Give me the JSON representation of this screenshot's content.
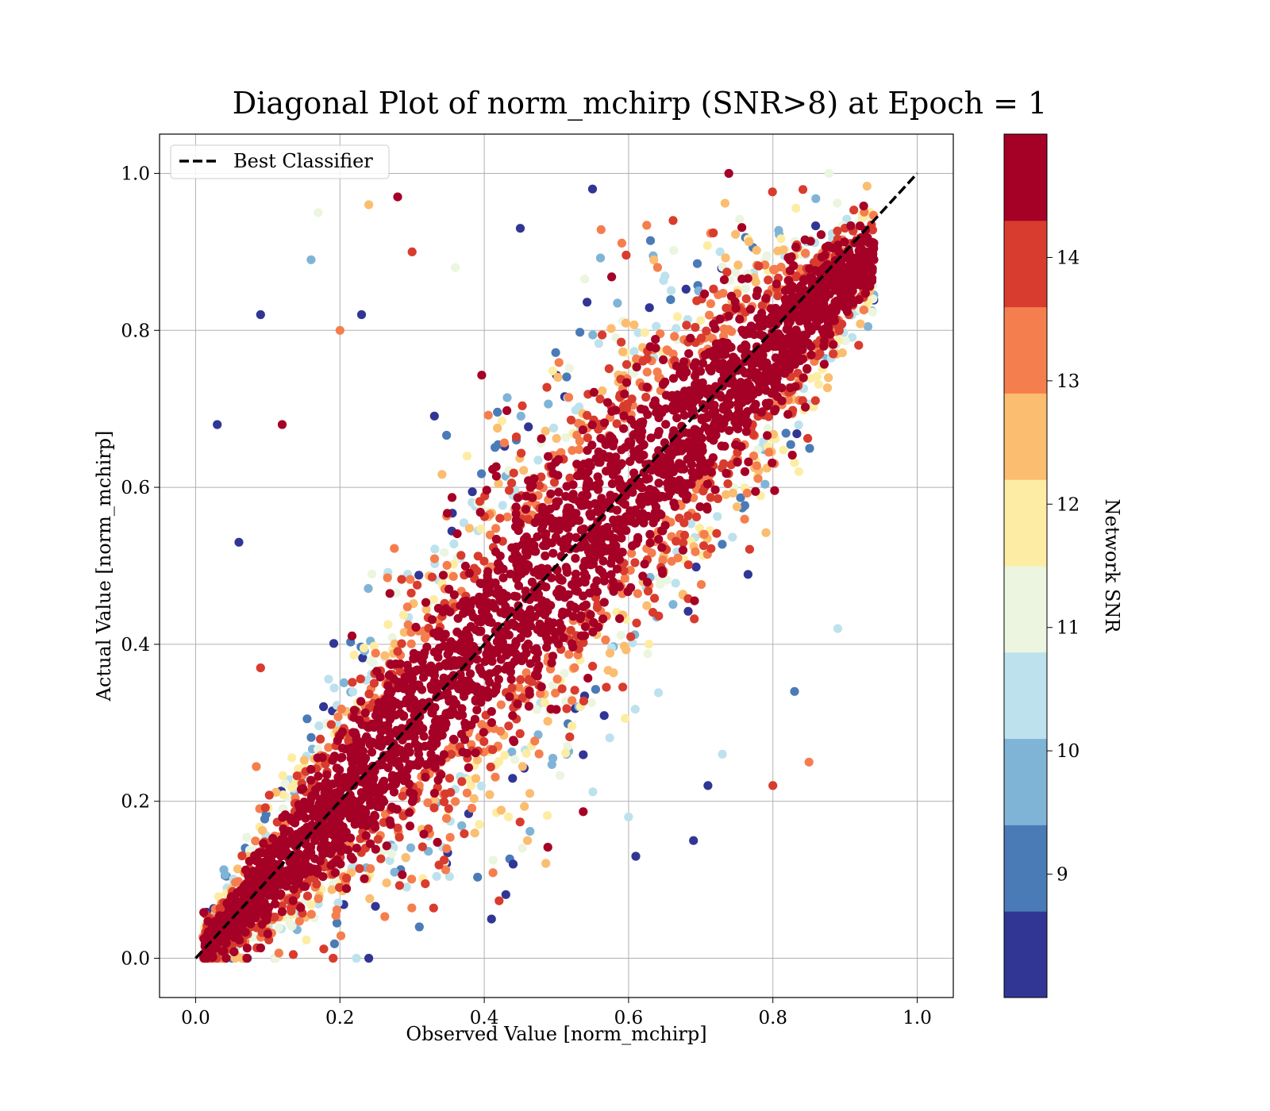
{
  "chart_data": {
    "type": "scatter",
    "title": "Diagonal Plot of norm_mchirp (SNR>8) at Epoch = 1",
    "xlabel": "Observed Value [norm_mchirp]",
    "ylabel": "Actual Value [norm_mchirp]",
    "xlim": [
      -0.05,
      1.05
    ],
    "ylim": [
      -0.05,
      1.05
    ],
    "xticks": [
      "0.0",
      "0.2",
      "0.4",
      "0.6",
      "0.8",
      "1.0"
    ],
    "yticks": [
      "0.0",
      "0.2",
      "0.4",
      "0.6",
      "0.8",
      "1.0"
    ],
    "grid": true,
    "legend": {
      "location": "upper left",
      "entries": [
        {
          "label": "Best Classifier",
          "style": "dashed",
          "color": "#000000"
        }
      ]
    },
    "reference_line": {
      "name": "Best Classifier",
      "x": [
        0.0,
        1.0
      ],
      "y": [
        0.0,
        1.0
      ]
    },
    "colorbar": {
      "label": "Network SNR",
      "range": [
        8.0,
        15.0
      ],
      "ticks": [
        "9",
        "10",
        "11",
        "12",
        "13",
        "14"
      ],
      "bins": [
        {
          "from": 8.0,
          "to": 8.7,
          "color": "#313695"
        },
        {
          "from": 8.7,
          "to": 9.4,
          "color": "#4a7bb7"
        },
        {
          "from": 9.4,
          "to": 10.1,
          "color": "#80b4d6"
        },
        {
          "from": 10.1,
          "to": 10.8,
          "color": "#bde2ed"
        },
        {
          "from": 10.8,
          "to": 11.5,
          "color": "#ebf5df"
        },
        {
          "from": 11.5,
          "to": 12.2,
          "color": "#fdeda4"
        },
        {
          "from": 12.2,
          "to": 12.9,
          "color": "#fbbd6f"
        },
        {
          "from": 12.9,
          "to": 13.6,
          "color": "#f57e4e"
        },
        {
          "from": 13.6,
          "to": 14.3,
          "color": "#d83c2e"
        },
        {
          "from": 14.3,
          "to": 15.0,
          "color": "#a50026"
        }
      ]
    },
    "series": [
      {
        "x_range": [
          0.0,
          0.94
        ],
        "y_range": [
          0.0,
          1.0
        ],
        "color_by": "Network SNR",
        "points": [
          {
            "x": 0.23,
            "y": 0.82,
            "snr": 8.2
          },
          {
            "x": 0.28,
            "y": 0.97,
            "snr": 14.6
          },
          {
            "x": 0.03,
            "y": 0.68,
            "snr": 8.3
          },
          {
            "x": 0.09,
            "y": 0.82,
            "snr": 8.4
          },
          {
            "x": 0.17,
            "y": 0.95,
            "snr": 11.2
          },
          {
            "x": 0.24,
            "y": 0.96,
            "snr": 12.4
          },
          {
            "x": 0.94,
            "y": 0.89,
            "snr": 14.7
          },
          {
            "x": 0.85,
            "y": 0.25,
            "snr": 13.4
          },
          {
            "x": 0.8,
            "y": 0.22,
            "snr": 13.9
          },
          {
            "x": 0.41,
            "y": 0.05,
            "snr": 8.2
          },
          {
            "x": 0.24,
            "y": 0.0,
            "snr": 8.3
          },
          {
            "x": 0.69,
            "y": 0.15,
            "snr": 8.4
          },
          {
            "x": 0.61,
            "y": 0.13,
            "snr": 8.5
          },
          {
            "x": 0.44,
            "y": 0.12,
            "snr": 8.6
          },
          {
            "x": 0.31,
            "y": 0.04,
            "snr": 9.0
          },
          {
            "x": 0.83,
            "y": 0.34,
            "snr": 9.2
          },
          {
            "x": 0.89,
            "y": 0.42,
            "snr": 10.5
          },
          {
            "x": 0.12,
            "y": 0.68,
            "snr": 14.5
          },
          {
            "x": 0.2,
            "y": 0.8,
            "snr": 13.5
          },
          {
            "x": 0.3,
            "y": 0.9,
            "snr": 14.2
          },
          {
            "x": 0.36,
            "y": 0.88,
            "snr": 11.0
          },
          {
            "x": 0.45,
            "y": 0.93,
            "snr": 8.6
          },
          {
            "x": 0.55,
            "y": 0.98,
            "snr": 8.3
          },
          {
            "x": 0.06,
            "y": 0.53,
            "snr": 8.4
          },
          {
            "x": 0.09,
            "y": 0.37,
            "snr": 14.0
          },
          {
            "x": 0.16,
            "y": 0.89,
            "snr": 9.5
          },
          {
            "x": 0.6,
            "y": 0.18,
            "snr": 10.3
          },
          {
            "x": 0.46,
            "y": 0.15,
            "snr": 12.2
          },
          {
            "x": 0.73,
            "y": 0.26,
            "snr": 10.6
          },
          {
            "x": 0.71,
            "y": 0.22,
            "snr": 8.3
          }
        ]
      }
    ]
  }
}
